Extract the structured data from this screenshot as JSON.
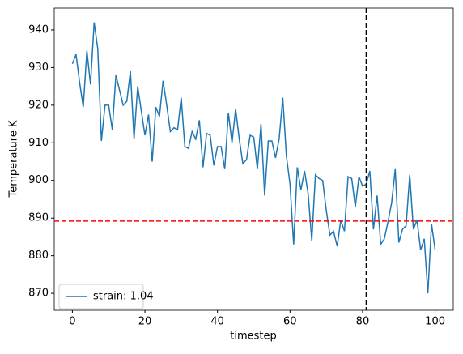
{
  "chart_data": {
    "type": "line",
    "xlabel": "timestep",
    "ylabel": "Temperature K",
    "x": [
      0,
      1,
      2,
      3,
      4,
      5,
      6,
      7,
      8,
      9,
      10,
      11,
      12,
      13,
      14,
      15,
      16,
      17,
      18,
      19,
      20,
      21,
      22,
      23,
      24,
      25,
      26,
      27,
      28,
      29,
      30,
      31,
      32,
      33,
      34,
      35,
      36,
      37,
      38,
      39,
      40,
      41,
      42,
      43,
      44,
      45,
      46,
      47,
      48,
      49,
      50,
      51,
      52,
      53,
      54,
      55,
      56,
      57,
      58,
      59,
      60,
      61,
      62,
      63,
      64,
      65,
      66,
      67,
      68,
      69,
      70,
      71,
      72,
      73,
      74,
      75,
      76,
      77,
      78,
      79,
      80,
      81,
      82,
      83,
      84,
      85,
      86,
      87,
      88,
      89,
      90,
      91,
      92,
      93,
      94,
      95,
      96,
      97,
      98,
      99,
      100
    ],
    "series": [
      {
        "name": "strain: 1.04",
        "color": "#1f77b4",
        "values": [
          931,
          933.5,
          926,
          919.5,
          934.5,
          925.5,
          942,
          935,
          910.5,
          920,
          920,
          913.5,
          928,
          924,
          920,
          921,
          929,
          911,
          925,
          918.5,
          912,
          917.5,
          905,
          919.5,
          917,
          926.5,
          920,
          913,
          914,
          913.5,
          922,
          909,
          908.5,
          913,
          911,
          916,
          903.5,
          912.5,
          912,
          904,
          909,
          909,
          903,
          918,
          910,
          919,
          911,
          904.5,
          905.5,
          912,
          911.5,
          903,
          915,
          896,
          910.5,
          910.5,
          906,
          911,
          922,
          906.5,
          899,
          883,
          903.5,
          897.5,
          902.5,
          896.5,
          884,
          901.5,
          900.5,
          900,
          892,
          885.5,
          886.5,
          882.5,
          889.5,
          886.5,
          901,
          900.5,
          893,
          901,
          898.5,
          899,
          902.5,
          887,
          896,
          883,
          884.5,
          889,
          894,
          903,
          883.5,
          887,
          888,
          901.5,
          887,
          889.5,
          881.5,
          884.5,
          870,
          888.5,
          881.5
        ]
      }
    ],
    "xlim": [
      -5,
      105
    ],
    "ylim": [
      865.5,
      945.8
    ],
    "xticks": [
      0,
      20,
      40,
      60,
      80,
      100
    ],
    "yticks": [
      870,
      880,
      890,
      900,
      910,
      920,
      930,
      940
    ],
    "hline": {
      "value": 889.2,
      "color": "#ff0000"
    },
    "vline": {
      "value": 81,
      "color": "#000000"
    },
    "legend": "lower left"
  }
}
